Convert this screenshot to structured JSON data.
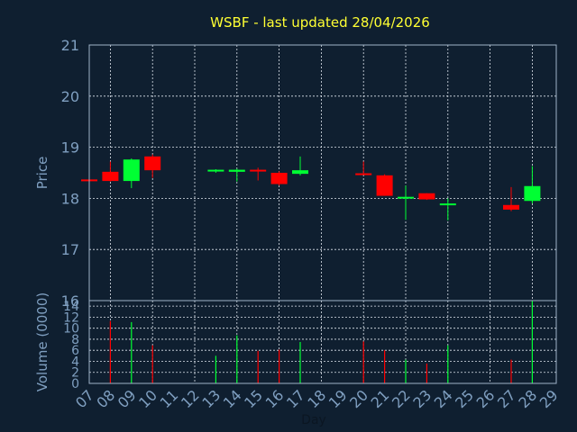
{
  "chart_data": {
    "type": "candlestick",
    "title": "WSBF - last updated 28/04/2026",
    "ylabel": "Price",
    "volume_label": "Volume (0000)",
    "xlabel": "Day",
    "x_ticks": [
      "07",
      "08",
      "09",
      "10",
      "11",
      "12",
      "13",
      "14",
      "15",
      "16",
      "17",
      "18",
      "19",
      "20",
      "21",
      "22",
      "23",
      "24",
      "25",
      "26",
      "27",
      "28",
      "29"
    ],
    "price_ylim": [
      16,
      21
    ],
    "price_ticks": [
      "16",
      "17",
      "18",
      "19",
      "20",
      "21"
    ],
    "volume_ylim": [
      0,
      15
    ],
    "volume_ticks": [
      "0",
      "2",
      "4",
      "6",
      "8",
      "10",
      "12",
      "14"
    ],
    "colors": {
      "up": "#00ff33",
      "down": "#ff0000",
      "title": "#ffff33",
      "axis": "#7f9fc0",
      "background": "#0f1f30"
    },
    "candles": [
      {
        "day": "07",
        "open": 18.37,
        "high": 18.37,
        "low": 18.35,
        "close": 18.35,
        "volume": 0
      },
      {
        "day": "08",
        "open": 18.52,
        "high": 18.72,
        "low": 18.33,
        "close": 18.34,
        "volume": 11.3
      },
      {
        "day": "09",
        "open": 18.34,
        "high": 18.78,
        "low": 18.2,
        "close": 18.76,
        "volume": 11.1
      },
      {
        "day": "10",
        "open": 18.82,
        "high": 18.86,
        "low": 18.4,
        "close": 18.55,
        "volume": 6.9
      },
      {
        "day": "13",
        "open": 18.53,
        "high": 18.57,
        "low": 18.5,
        "close": 18.56,
        "volume": 5.0
      },
      {
        "day": "14",
        "open": 18.52,
        "high": 18.58,
        "low": 18.33,
        "close": 18.56,
        "volume": 8.7
      },
      {
        "day": "15",
        "open": 18.56,
        "high": 18.6,
        "low": 18.35,
        "close": 18.53,
        "volume": 5.9
      },
      {
        "day": "16",
        "open": 18.5,
        "high": 18.53,
        "low": 18.25,
        "close": 18.28,
        "volume": 6.1
      },
      {
        "day": "17",
        "open": 18.48,
        "high": 18.82,
        "low": 18.45,
        "close": 18.55,
        "volume": 7.5
      },
      {
        "day": "20",
        "open": 18.49,
        "high": 18.72,
        "low": 18.46,
        "close": 18.47,
        "volume": 7.6
      },
      {
        "day": "21",
        "open": 18.45,
        "high": 18.47,
        "low": 18.05,
        "close": 18.05,
        "volume": 6.0
      },
      {
        "day": "22",
        "open": 18.03,
        "high": 18.25,
        "low": 17.58,
        "close": 18.03,
        "volume": 4.3
      },
      {
        "day": "23",
        "open": 18.1,
        "high": 18.1,
        "low": 17.97,
        "close": 17.98,
        "volume": 3.6
      },
      {
        "day": "24",
        "open": 17.88,
        "high": 18.0,
        "low": 17.57,
        "close": 17.9,
        "volume": 6.9
      },
      {
        "day": "27",
        "open": 17.87,
        "high": 18.22,
        "low": 17.75,
        "close": 17.78,
        "volume": 4.3
      },
      {
        "day": "28",
        "open": 17.95,
        "high": 18.63,
        "low": 17.9,
        "close": 18.24,
        "volume": 15.0
      }
    ]
  }
}
